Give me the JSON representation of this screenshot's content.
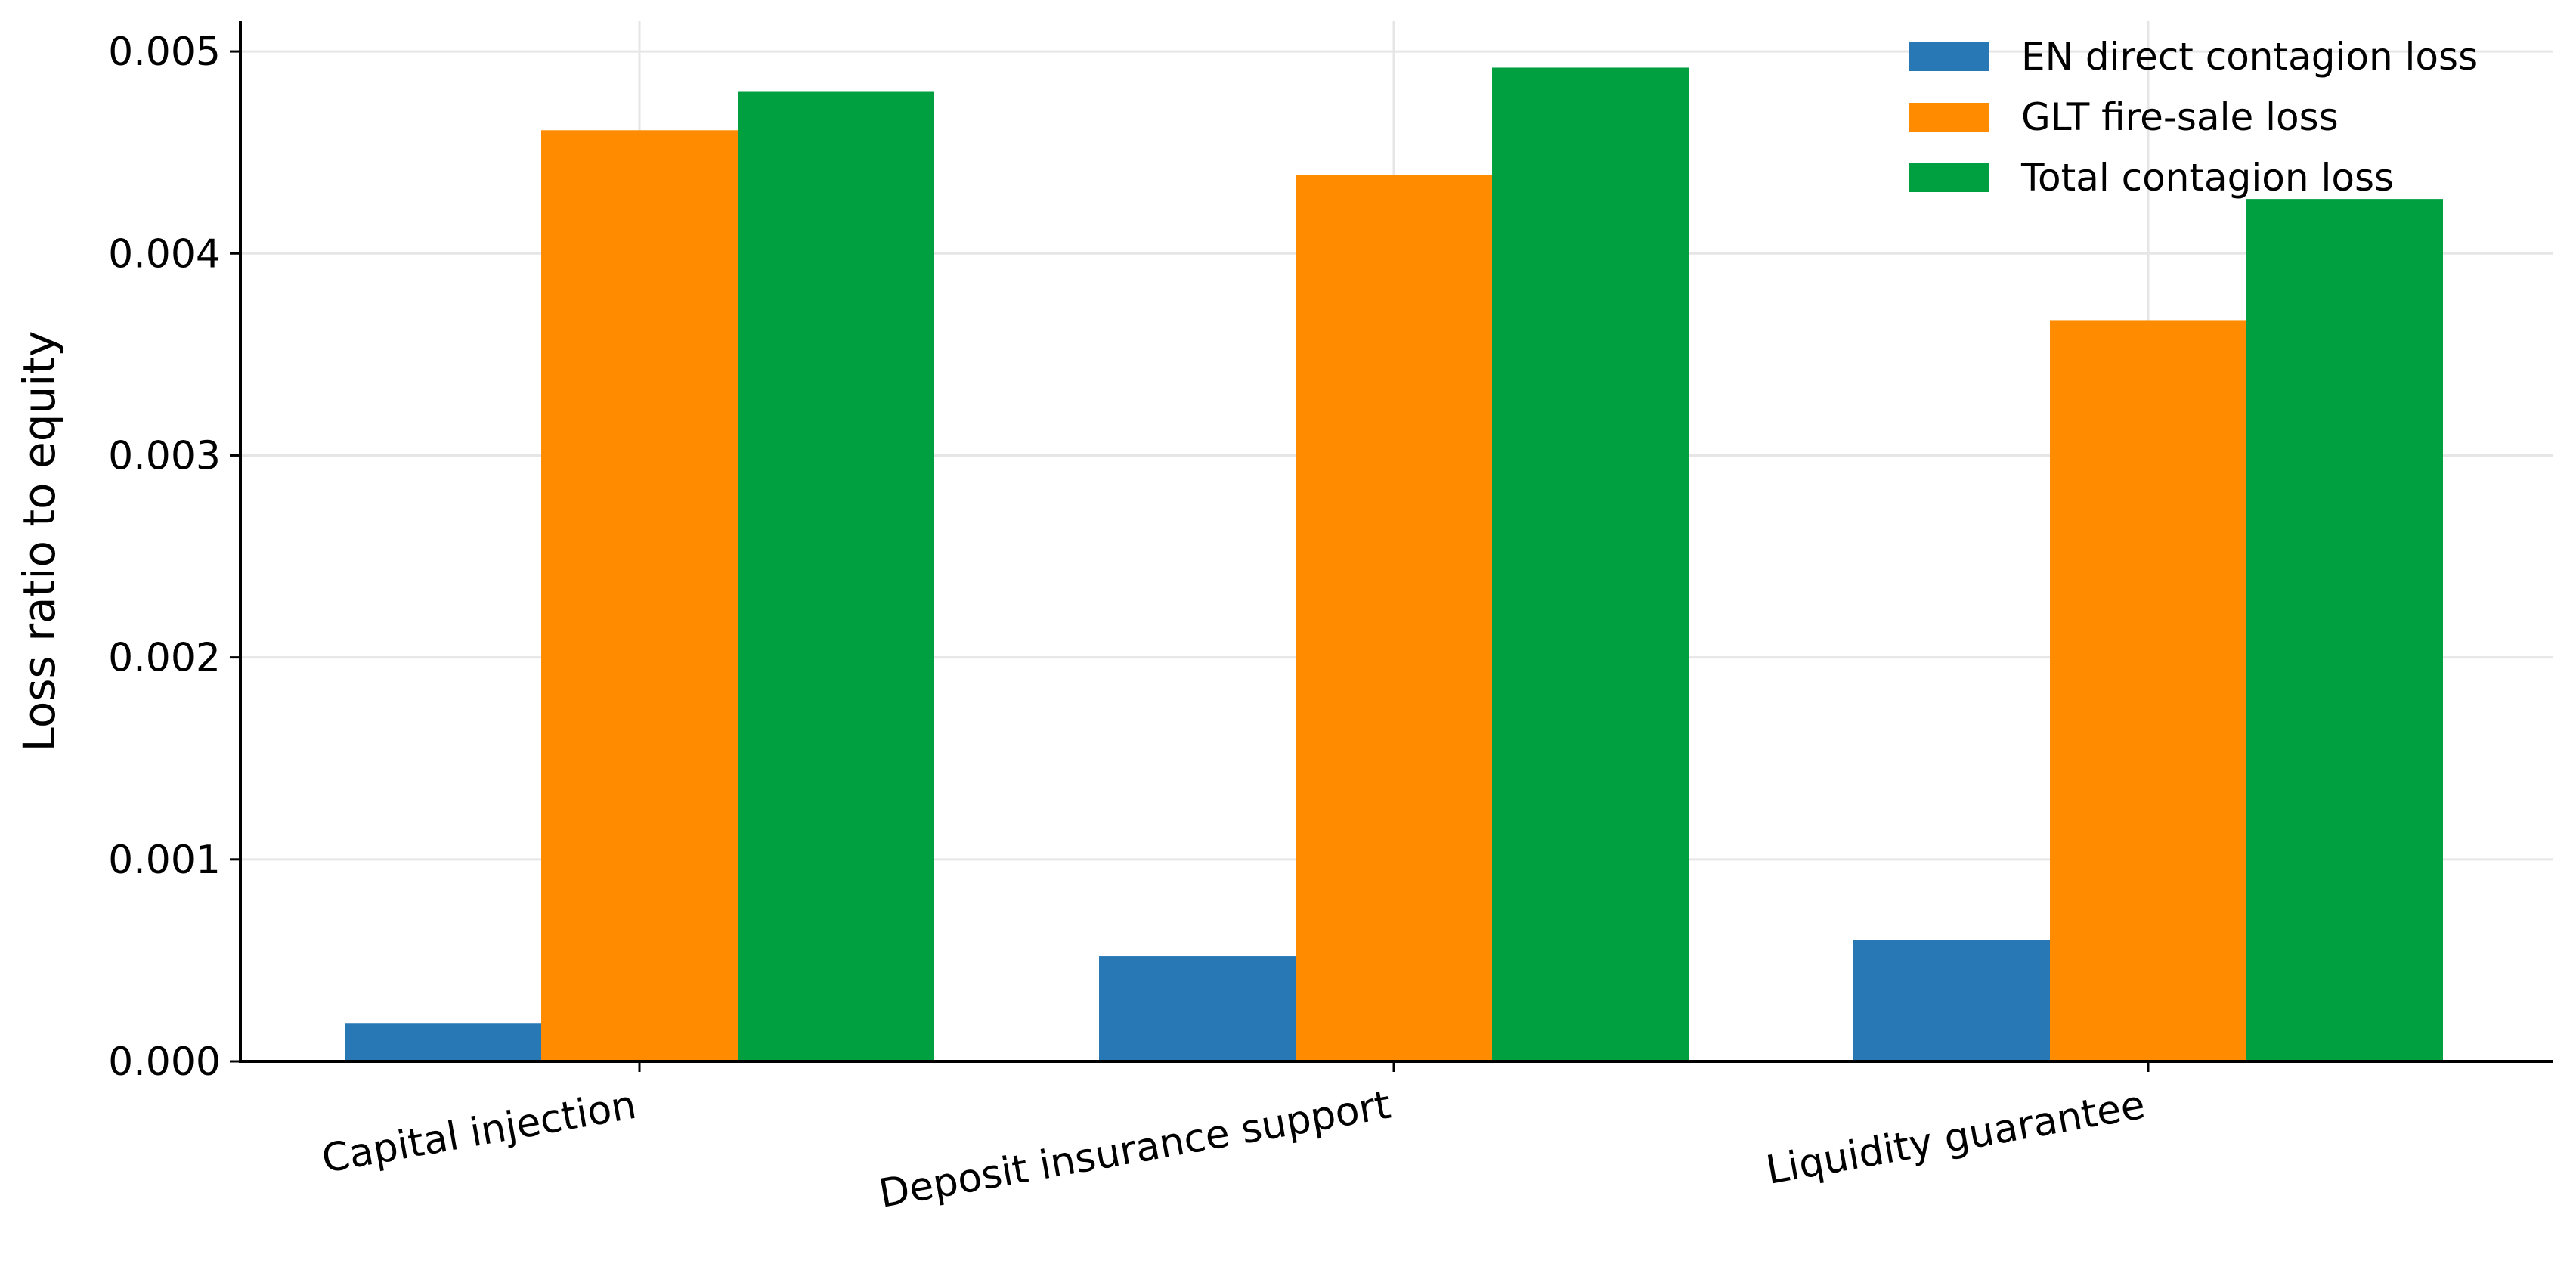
{
  "chart_data": {
    "type": "bar",
    "categories": [
      "Capital injection",
      "Deposit insurance support",
      "Liquidity guarantee"
    ],
    "series": [
      {
        "name": "EN direct contagion loss",
        "color": "#2878b5",
        "values": [
          0.00019,
          0.00052,
          0.0006
        ]
      },
      {
        "name": "GLT fire-sale loss",
        "color": "#ff8c00",
        "values": [
          0.00461,
          0.00439,
          0.00367
        ]
      },
      {
        "name": "Total contagion loss",
        "color": "#00a040",
        "values": [
          0.0048,
          0.00492,
          0.00427
        ]
      }
    ],
    "title": "",
    "xlabel": "",
    "ylabel": "Loss ratio to equity",
    "ylim": [
      0,
      0.00515
    ],
    "yticks": [
      0,
      0.001,
      0.002,
      0.003,
      0.004,
      0.005
    ],
    "ytick_labels": [
      "0.000",
      "0.001",
      "0.002",
      "0.003",
      "0.004",
      "0.005"
    ],
    "grid": true,
    "legend_position": "top-right"
  }
}
